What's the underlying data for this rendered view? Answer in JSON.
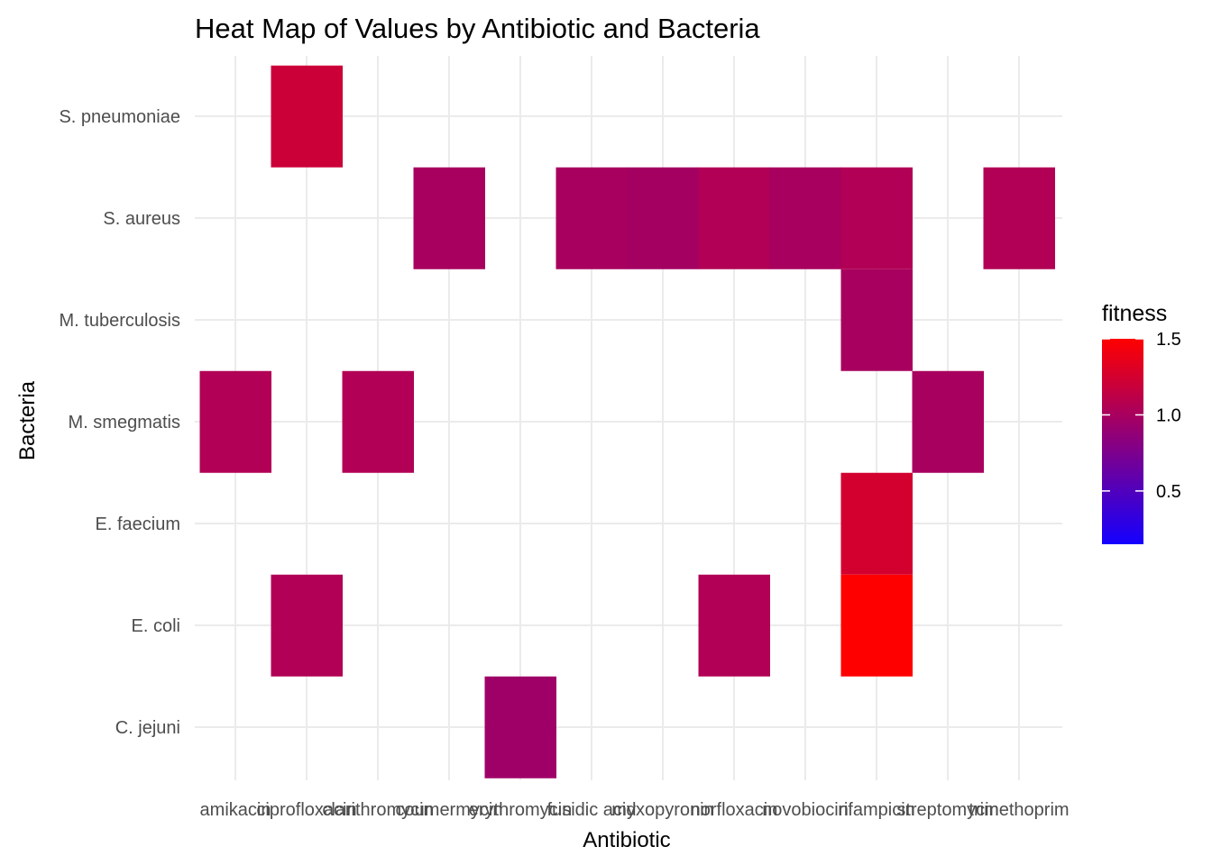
{
  "chart_data": {
    "type": "heatmap",
    "title": "Heat Map of Values by Antibiotic and Bacteria",
    "xlabel": "Antibiotic",
    "ylabel": "Bacteria",
    "x_categories": [
      "amikacin",
      "ciprofloxacin",
      "clarithromycin",
      "coumermycin",
      "erythromycin",
      "fusidic acid",
      "myxopyronin",
      "norfloxacin",
      "novobiocin",
      "rifampicin",
      "streptomycin",
      "trimethoprim"
    ],
    "x_tick_labels": [
      "amikacin",
      "ciprofloxacin",
      "clarithromycin",
      "coumermycin",
      "erythromycin",
      "fusidic acid",
      "myxopyronin",
      "norfloxacin",
      "novobiocin",
      "rifampicin",
      "streptomycin",
      "trimethoprim"
    ],
    "y_categories": [
      "C. jejuni",
      "E. coli",
      "E. faecium",
      "M. smegmatis",
      "M. tuberculosis",
      "S. aureus",
      "S. pneumoniae"
    ],
    "cells": [
      {
        "x": "ciprofloxacin",
        "y": "S. pneumoniae",
        "value": 1.2
      },
      {
        "x": "coumermycin",
        "y": "S. aureus",
        "value": 1.0
      },
      {
        "x": "fusidic acid",
        "y": "S. aureus",
        "value": 1.0
      },
      {
        "x": "myxopyronin",
        "y": "S. aureus",
        "value": 0.98
      },
      {
        "x": "norfloxacin",
        "y": "S. aureus",
        "value": 1.05
      },
      {
        "x": "novobiocin",
        "y": "S. aureus",
        "value": 1.0
      },
      {
        "x": "rifampicin",
        "y": "S. aureus",
        "value": 1.05
      },
      {
        "x": "trimethoprim",
        "y": "S. aureus",
        "value": 1.05
      },
      {
        "x": "rifampicin",
        "y": "M. tuberculosis",
        "value": 1.0
      },
      {
        "x": "amikacin",
        "y": "M. smegmatis",
        "value": 1.05
      },
      {
        "x": "clarithromycin",
        "y": "M. smegmatis",
        "value": 1.05
      },
      {
        "x": "streptomycin",
        "y": "M. smegmatis",
        "value": 1.0
      },
      {
        "x": "rifampicin",
        "y": "E. faecium",
        "value": 1.25
      },
      {
        "x": "ciprofloxacin",
        "y": "E. coli",
        "value": 1.05
      },
      {
        "x": "norfloxacin",
        "y": "E. coli",
        "value": 1.05
      },
      {
        "x": "rifampicin",
        "y": "E. coli",
        "value": 1.5
      },
      {
        "x": "erythromycin",
        "y": "C. jejuni",
        "value": 0.95
      }
    ],
    "legend": {
      "title": "fitness",
      "placement": "right",
      "min": 0.15,
      "max": 1.5,
      "ticks": [
        0.5,
        1.0,
        1.5
      ],
      "tick_labels": [
        "0.5",
        "1.0",
        "1.5"
      ],
      "low_color": "#1400ff",
      "high_color": "#ff0000"
    },
    "grid": true,
    "colors": {
      "grid": "#ebebeb",
      "background": "#ffffff"
    }
  }
}
